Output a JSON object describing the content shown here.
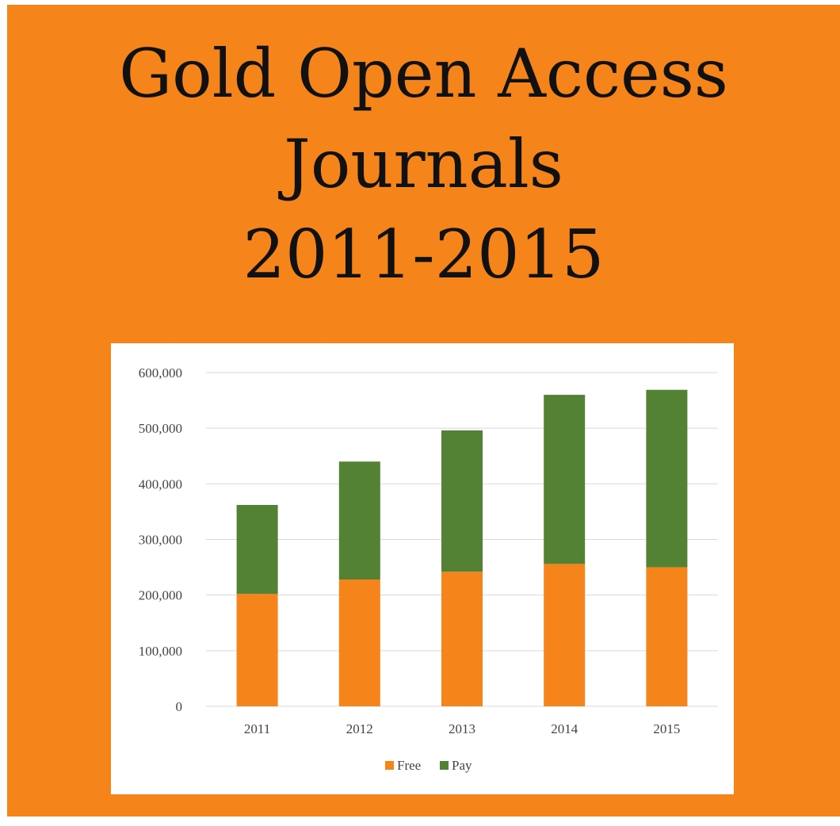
{
  "title": {
    "line1": "Gold Open Access",
    "line2": "Journals",
    "line3": "2011-2015"
  },
  "colors": {
    "background": "#f5841a",
    "free": "#f5841a",
    "pay": "#548235",
    "grid": "#d9d9d9",
    "text": "#444444"
  },
  "chart_data": {
    "type": "bar",
    "stacked": true,
    "categories": [
      "2011",
      "2012",
      "2013",
      "2014",
      "2015"
    ],
    "series": [
      {
        "name": "Free",
        "values": [
          202000,
          228000,
          242000,
          256000,
          250000
        ]
      },
      {
        "name": "Pay",
        "values": [
          160000,
          212000,
          254000,
          304000,
          319000
        ]
      }
    ],
    "totals": [
      362000,
      440000,
      496000,
      560000,
      569000
    ],
    "ylim": [
      0,
      600000
    ],
    "yticks": [
      0,
      100000,
      200000,
      300000,
      400000,
      500000,
      600000
    ],
    "ytick_labels": [
      "0",
      "100,000",
      "200,000",
      "300,000",
      "400,000",
      "500,000",
      "600,000"
    ],
    "grid": true,
    "legend": {
      "position": "bottom",
      "entries": [
        "Free",
        "Pay"
      ]
    },
    "xlabel": "",
    "ylabel": ""
  }
}
